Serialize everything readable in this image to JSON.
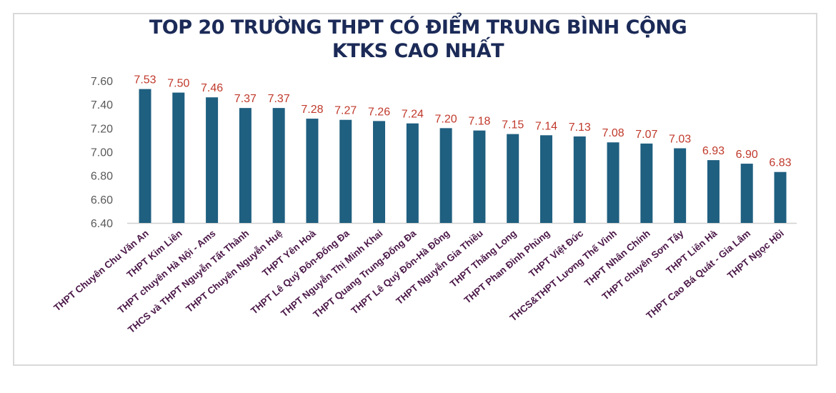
{
  "chart_data": {
    "type": "bar",
    "title": "TOP 20 TRƯỜNG THPT CÓ ĐIỂM TRUNG BÌNH CỘNG",
    "subtitle": "KTKS CAO NHẤT",
    "xlabel": "",
    "ylabel": "",
    "ylim": [
      6.4,
      7.6
    ],
    "yticks": [
      "7.60",
      "7.40",
      "7.20",
      "7.00",
      "6.80",
      "6.60",
      "6.40"
    ],
    "grid": false,
    "categories": [
      "THPT Chuyên Chu Văn An",
      "THPT Kim Liên",
      "THPT chuyên Hà Nội - Ams",
      "THCS và THPT Nguyễn Tất Thành",
      "THPT Chuyên Nguyễn Huệ",
      "THPT Yên Hoà",
      "THPT Lê Quý Đôn-Đống Đa",
      "THPT Nguyễn Thị Minh Khai",
      "THPT Quang Trung-Đống Đa",
      "THPT Lê Quý Đôn-Hà Đông",
      "THPT Nguyễn Gia Thiều",
      "THPT Thăng Long",
      "THPT Phan Đình Phùng",
      "THPT Việt Đức",
      "THCS&THPT  Lương Thế Vinh",
      "THPT Nhân Chính",
      "THPT chuyên  Sơn Tây",
      "THPT Liên Hà",
      "THPT Cao Bá Quát - Gia Lâm",
      "THPT Ngọc Hồi"
    ],
    "values": [
      7.53,
      7.5,
      7.46,
      7.37,
      7.37,
      7.28,
      7.27,
      7.26,
      7.24,
      7.2,
      7.18,
      7.15,
      7.14,
      7.13,
      7.08,
      7.07,
      7.03,
      6.93,
      6.9,
      6.83
    ],
    "data_labels": [
      "7.53",
      "7.50",
      "7.46",
      "7.37",
      "7.37",
      "7.28",
      "7.27",
      "7.26",
      "7.24",
      "7.20",
      "7.18",
      "7.15",
      "7.14",
      "7.13",
      "7.08",
      "7.07",
      "7.03",
      "6.93",
      "6.90",
      "6.83"
    ],
    "colors": {
      "bar": "#1f5f80",
      "data_label": "#c0392b",
      "category_label": "#4b1848",
      "title": "#1b2a57",
      "tick": "#595959"
    }
  }
}
